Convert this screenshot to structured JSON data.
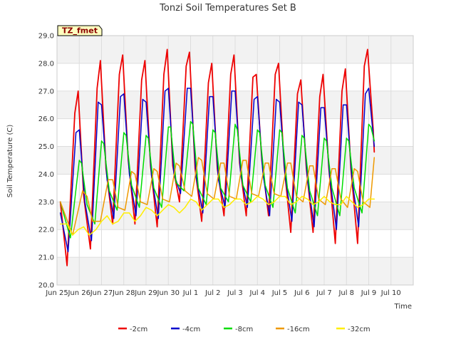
{
  "chart_data": {
    "type": "line",
    "title": "Tonzi Soil Temperatures Set B",
    "xlabel": "Time",
    "ylabel": "Soil Temperature (C)",
    "badge": "TZ_fmet",
    "ylim": [
      20.0,
      29.0
    ],
    "yticks": [
      "20.0",
      "21.0",
      "22.0",
      "23.0",
      "24.0",
      "25.0",
      "26.0",
      "27.0",
      "28.0",
      "29.0"
    ],
    "xlim": [
      0,
      16
    ],
    "xticks": [
      {
        "x": 0,
        "label": "Jun 25"
      },
      {
        "x": 1,
        "label": "Jun 26"
      },
      {
        "x": 2,
        "label": "Jun 27"
      },
      {
        "x": 3,
        "label": "Jun 28"
      },
      {
        "x": 4,
        "label": "Jun 29"
      },
      {
        "x": 5,
        "label": "Jun 30"
      },
      {
        "x": 6,
        "label": "Jul 1"
      },
      {
        "x": 7,
        "label": "Jul 2"
      },
      {
        "x": 8,
        "label": "Jul 3"
      },
      {
        "x": 9,
        "label": "Jul 4"
      },
      {
        "x": 10,
        "label": "Jul 5"
      },
      {
        "x": 11,
        "label": "Jul 6"
      },
      {
        "x": 12,
        "label": "Jul 7"
      },
      {
        "x": 13,
        "label": "Jul 8"
      },
      {
        "x": 14,
        "label": "Jul 9"
      },
      {
        "x": 15,
        "label": "Jul 10"
      }
    ],
    "grid": true,
    "legend_position": "bottom",
    "series": [
      {
        "name": "-2cm",
        "color": "#ee0000",
        "width": 1.8,
        "x": [
          0.15,
          0.45,
          0.8,
          0.95,
          1.2,
          1.5,
          1.8,
          1.95,
          2.2,
          2.5,
          2.8,
          2.95,
          3.2,
          3.5,
          3.8,
          3.95,
          4.2,
          4.5,
          4.8,
          4.95,
          5.2,
          5.5,
          5.8,
          5.95,
          6.2,
          6.5,
          6.8,
          6.95,
          7.2,
          7.5,
          7.8,
          7.95,
          8.2,
          8.5,
          8.8,
          8.95,
          9.2,
          9.5,
          9.8,
          9.95,
          10.2,
          10.5,
          10.8,
          10.95,
          11.2,
          11.5,
          11.8,
          11.95,
          12.2,
          12.5,
          12.8,
          12.95,
          13.2,
          13.5,
          13.8,
          13.95,
          14.2,
          14.25
        ],
        "y": [
          23.0,
          20.7,
          26.2,
          27.0,
          23.2,
          21.3,
          27.1,
          28.1,
          24.2,
          22.2,
          27.6,
          28.3,
          24.5,
          22.2,
          27.4,
          28.1,
          24.3,
          22.1,
          27.6,
          28.5,
          24.3,
          23.0,
          27.9,
          28.4,
          24.2,
          22.3,
          27.3,
          28.0,
          24.2,
          22.5,
          27.6,
          28.3,
          24.4,
          22.5,
          27.5,
          27.6,
          24.5,
          22.5,
          27.6,
          28.0,
          24.3,
          21.9,
          26.9,
          27.4,
          24.2,
          21.9,
          26.8,
          27.6,
          24.3,
          21.5,
          27.0,
          27.8,
          24.2,
          21.5,
          27.9,
          28.5,
          25.6,
          24.8
        ]
      },
      {
        "name": "-4cm",
        "color": "#0000cc",
        "width": 1.5,
        "x": [
          0.15,
          0.5,
          0.85,
          1.0,
          1.25,
          1.55,
          1.85,
          2.0,
          2.25,
          2.55,
          2.85,
          3.0,
          3.25,
          3.55,
          3.85,
          4.0,
          4.25,
          4.55,
          4.85,
          5.0,
          5.25,
          5.55,
          5.85,
          6.0,
          6.25,
          6.55,
          6.85,
          7.0,
          7.25,
          7.55,
          7.85,
          8.0,
          8.25,
          8.55,
          8.85,
          9.0,
          9.25,
          9.55,
          9.85,
          10.0,
          10.25,
          10.55,
          10.85,
          11.0,
          11.25,
          11.55,
          11.85,
          12.0,
          12.25,
          12.55,
          12.85,
          13.0,
          13.25,
          13.55,
          13.85,
          14.0,
          14.25
        ],
        "y": [
          22.6,
          21.2,
          25.5,
          25.6,
          23.0,
          21.6,
          26.6,
          26.5,
          23.8,
          22.4,
          26.8,
          26.9,
          24.0,
          22.5,
          26.7,
          26.6,
          23.9,
          22.4,
          27.0,
          27.1,
          24.0,
          23.3,
          27.1,
          27.1,
          23.9,
          22.6,
          26.8,
          26.8,
          23.8,
          22.8,
          27.0,
          27.0,
          24.0,
          22.8,
          26.7,
          26.8,
          24.0,
          22.5,
          26.7,
          26.6,
          23.9,
          22.3,
          26.6,
          26.5,
          23.8,
          22.1,
          26.4,
          26.4,
          23.9,
          22.0,
          26.5,
          26.5,
          23.8,
          22.1,
          26.9,
          27.1,
          25.0
        ]
      },
      {
        "name": "-8cm",
        "color": "#00dd00",
        "width": 1.5,
        "x": [
          0.15,
          0.6,
          1.0,
          1.1,
          1.35,
          1.7,
          2.0,
          2.1,
          2.35,
          2.7,
          3.0,
          3.1,
          3.35,
          3.7,
          4.0,
          4.1,
          4.35,
          4.7,
          5.0,
          5.1,
          5.35,
          5.7,
          6.0,
          6.1,
          6.35,
          6.7,
          7.0,
          7.1,
          7.35,
          7.7,
          8.0,
          8.1,
          8.35,
          8.7,
          9.0,
          9.1,
          9.35,
          9.7,
          10.0,
          10.1,
          10.35,
          10.7,
          11.0,
          11.1,
          11.35,
          11.7,
          12.0,
          12.1,
          12.35,
          12.7,
          13.0,
          13.1,
          13.35,
          13.7,
          14.0,
          14.1,
          14.25
        ],
        "y": [
          23.0,
          21.7,
          24.5,
          24.4,
          22.9,
          22.2,
          25.2,
          25.1,
          23.4,
          22.7,
          25.5,
          25.4,
          23.6,
          22.8,
          25.4,
          25.3,
          23.5,
          22.8,
          25.7,
          25.7,
          23.7,
          23.4,
          25.9,
          25.8,
          23.5,
          22.9,
          25.6,
          25.5,
          23.5,
          23.0,
          25.8,
          25.6,
          23.6,
          23.0,
          25.6,
          25.5,
          23.6,
          22.8,
          25.6,
          25.5,
          23.5,
          22.6,
          25.4,
          25.3,
          23.4,
          22.5,
          25.3,
          25.2,
          23.5,
          22.5,
          25.3,
          25.2,
          23.5,
          22.6,
          25.8,
          25.7,
          25.2
        ]
      },
      {
        "name": "-16cm",
        "color": "#ee9900",
        "width": 1.5,
        "x": [
          0.15,
          0.7,
          1.15,
          1.35,
          1.6,
          1.95,
          2.3,
          2.5,
          2.75,
          3.05,
          3.35,
          3.5,
          3.75,
          4.05,
          4.35,
          4.5,
          4.75,
          5.05,
          5.35,
          5.5,
          5.75,
          6.05,
          6.35,
          6.5,
          6.75,
          7.05,
          7.35,
          7.5,
          7.75,
          8.05,
          8.35,
          8.5,
          8.75,
          9.05,
          9.35,
          9.5,
          9.75,
          10.05,
          10.35,
          10.5,
          10.75,
          11.05,
          11.35,
          11.5,
          11.75,
          12.05,
          12.35,
          12.5,
          12.75,
          13.05,
          13.35,
          13.5,
          13.75,
          14.05,
          14.25
        ],
        "y": [
          23.0,
          21.8,
          23.4,
          23.2,
          22.3,
          22.3,
          23.8,
          23.8,
          22.8,
          22.7,
          24.1,
          24.0,
          23.0,
          22.9,
          24.2,
          24.1,
          23.1,
          23.0,
          24.4,
          24.3,
          23.4,
          23.2,
          24.6,
          24.5,
          23.3,
          23.1,
          24.4,
          24.4,
          23.2,
          23.1,
          24.5,
          24.5,
          23.3,
          23.2,
          24.4,
          24.4,
          23.3,
          23.2,
          24.4,
          24.4,
          23.2,
          23.0,
          24.3,
          24.3,
          23.1,
          22.9,
          24.2,
          24.2,
          23.1,
          22.8,
          24.2,
          24.1,
          23.0,
          22.8,
          24.6
        ]
      },
      {
        "name": "-32cm",
        "color": "#ffee00",
        "width": 1.5,
        "x": [
          0.15,
          0.45,
          0.7,
          0.95,
          1.2,
          1.45,
          1.75,
          2.0,
          2.25,
          2.5,
          2.75,
          3.0,
          3.25,
          3.5,
          3.75,
          4.0,
          4.25,
          4.5,
          4.75,
          5.0,
          5.25,
          5.5,
          5.75,
          6.0,
          6.25,
          6.5,
          6.75,
          7.0,
          7.25,
          7.5,
          7.75,
          8.0,
          8.25,
          8.5,
          8.75,
          9.0,
          9.25,
          9.5,
          9.75,
          10.0,
          10.25,
          10.5,
          10.75,
          11.0,
          11.25,
          11.5,
          11.75,
          12.0,
          12.25,
          12.5,
          12.75,
          13.0,
          13.25,
          13.5,
          13.75,
          14.0,
          14.25
        ],
        "y": [
          22.2,
          22.2,
          21.8,
          22.0,
          22.1,
          21.8,
          22.0,
          22.3,
          22.5,
          22.2,
          22.3,
          22.6,
          22.6,
          22.3,
          22.5,
          22.8,
          22.7,
          22.5,
          22.7,
          22.9,
          22.8,
          22.6,
          22.8,
          23.1,
          23.0,
          22.7,
          22.9,
          23.1,
          23.1,
          22.8,
          22.9,
          23.1,
          23.1,
          22.9,
          23.0,
          23.2,
          23.1,
          22.9,
          23.0,
          23.2,
          23.2,
          22.9,
          23.0,
          23.2,
          23.1,
          22.9,
          23.0,
          23.2,
          23.0,
          22.9,
          22.9,
          23.2,
          23.0,
          22.8,
          22.9,
          23.1,
          23.1
        ]
      }
    ]
  }
}
